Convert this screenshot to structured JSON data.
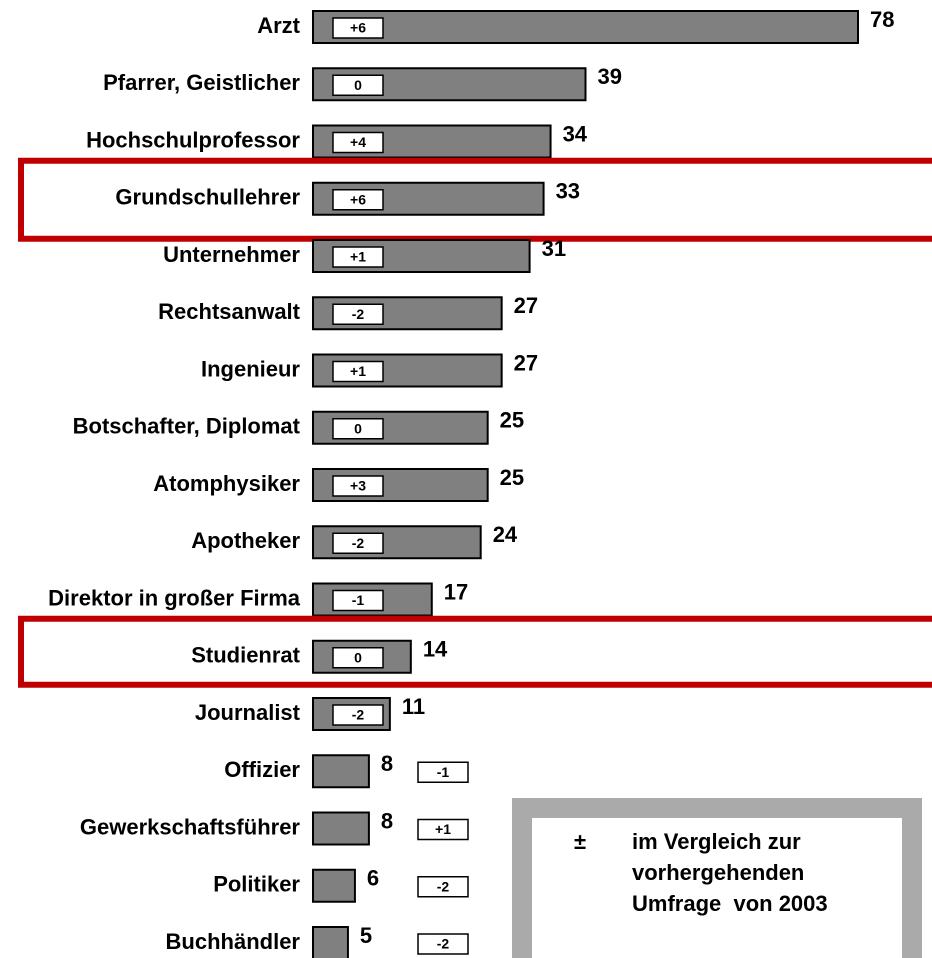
{
  "chart_data": {
    "type": "bar",
    "orientation": "horizontal",
    "categories": [
      "Arzt",
      "Pfarrer, Geistlicher",
      "Hochschulprofessor",
      "Grundschullehrer",
      "Unternehmer",
      "Rechtsanwalt",
      "Ingenieur",
      "Botschafter, Diplomat",
      "Atomphysiker",
      "Apotheker",
      "Direktor in großer Firma",
      "Studienrat",
      "Journalist",
      "Offizier",
      "Gewerkschaftsführer",
      "Politiker",
      "Buchhändler"
    ],
    "values": [
      78,
      39,
      34,
      33,
      31,
      27,
      27,
      25,
      25,
      24,
      17,
      14,
      11,
      8,
      8,
      6,
      5
    ],
    "changes": [
      "+6",
      "0",
      "+4",
      "+6",
      "+1",
      "-2",
      "+1",
      "0",
      "+3",
      "-2",
      "-1",
      "0",
      "-2",
      "-1",
      "+1",
      "-2",
      "-2"
    ],
    "color": "#808080",
    "xlim": [
      0,
      78
    ],
    "highlighted": [
      "Grundschullehrer",
      "Studienrat"
    ],
    "highlight_color": "#c00000",
    "legend": {
      "symbol": "±",
      "lines": [
        "im Vergleich zur",
        "vorhergehenden",
        "Umfrage  von 2003"
      ]
    }
  }
}
